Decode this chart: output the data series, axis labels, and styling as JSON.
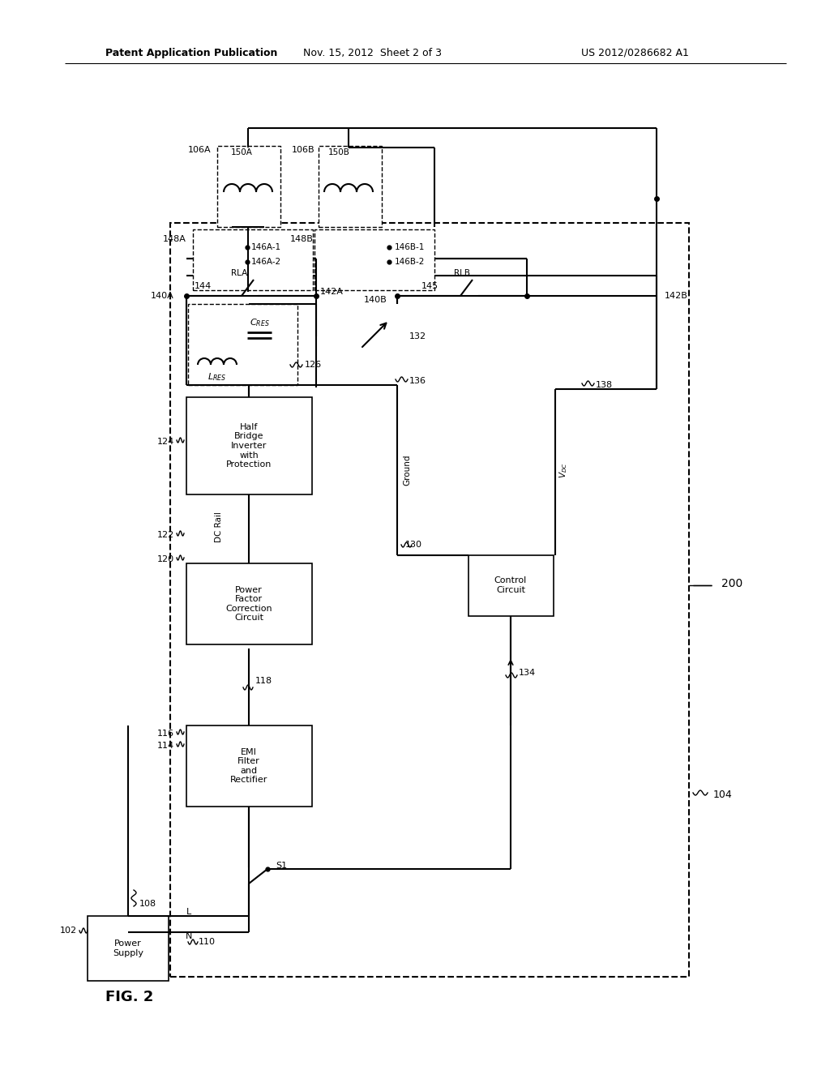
{
  "bg": "#ffffff",
  "lc": "#000000",
  "header_left": "Patent Application Publication",
  "header_center": "Nov. 15, 2012  Sheet 2 of 3",
  "header_right": "US 2012/0286682 A1",
  "fig_label": "FIG. 2"
}
